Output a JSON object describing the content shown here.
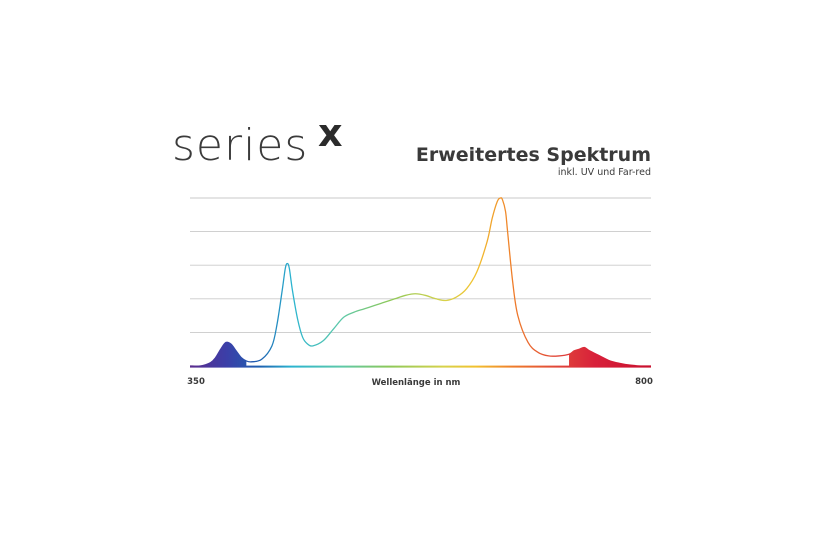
{
  "brand": {
    "word": "series",
    "mark": "x"
  },
  "chart_data": {
    "type": "line",
    "title": "Erweitertes Spektrum",
    "subtitle": "inkl. UV und Far-red",
    "xlabel": "Wellenlänge in nm",
    "ylabel": "",
    "xlim": [
      350,
      800
    ],
    "ylim": [
      0,
      1
    ],
    "x_tick_labels": [
      "350",
      "800"
    ],
    "grid": true,
    "gridline_count": 5,
    "series": [
      {
        "x": [
          350,
          360,
          370,
          375,
          380,
          385,
          390,
          395,
          400,
          405,
          410,
          420,
          430,
          435,
          440,
          443,
          445,
          447,
          450,
          455,
          460,
          465,
          470,
          480,
          490,
          500,
          510,
          520,
          530,
          540,
          550,
          560,
          570,
          580,
          590,
          600,
          610,
          620,
          630,
          640,
          645,
          650,
          653,
          655,
          658,
          660,
          665,
          670,
          680,
          690,
          700,
          710,
          720,
          725,
          730,
          735,
          740,
          750,
          760,
          770,
          780,
          790,
          800
        ],
        "values": [
          0.0,
          0.0,
          0.02,
          0.05,
          0.1,
          0.14,
          0.13,
          0.09,
          0.05,
          0.03,
          0.025,
          0.04,
          0.12,
          0.25,
          0.45,
          0.58,
          0.61,
          0.58,
          0.45,
          0.28,
          0.17,
          0.13,
          0.12,
          0.15,
          0.22,
          0.29,
          0.32,
          0.34,
          0.36,
          0.38,
          0.4,
          0.42,
          0.43,
          0.42,
          0.4,
          0.39,
          0.41,
          0.46,
          0.56,
          0.74,
          0.88,
          0.98,
          1.0,
          0.99,
          0.92,
          0.8,
          0.5,
          0.3,
          0.14,
          0.08,
          0.06,
          0.06,
          0.07,
          0.09,
          0.1,
          0.11,
          0.09,
          0.06,
          0.03,
          0.015,
          0.005,
          0.0,
          0.0
        ]
      }
    ],
    "colors": {
      "uv": "#5b2c8e",
      "blue": "#1e5fb0",
      "cyan": "#2bb4d0",
      "green": "#8bc85a",
      "yellow": "#f2c12e",
      "orange": "#ef7d2a",
      "red": "#d8203a",
      "far_red": "#c8102e",
      "grid": "#c9c9c9",
      "text": "#3a3a3a"
    }
  }
}
